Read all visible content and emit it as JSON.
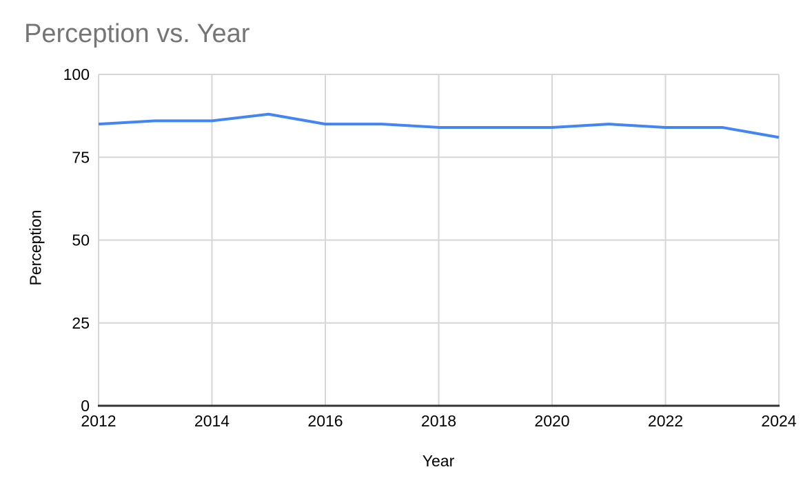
{
  "chart_data": {
    "type": "line",
    "title": "Perception vs. Year",
    "xlabel": "Year",
    "ylabel": "Perception",
    "x": [
      2012,
      2013,
      2014,
      2015,
      2016,
      2017,
      2018,
      2019,
      2020,
      2021,
      2022,
      2023,
      2024
    ],
    "series": [
      {
        "name": "Perception",
        "values": [
          85,
          86,
          86,
          88,
          85,
          85,
          84,
          84,
          84,
          85,
          84,
          84,
          81
        ]
      }
    ],
    "xlim": [
      2012,
      2024
    ],
    "ylim": [
      0,
      100
    ],
    "xticks": [
      2012,
      2014,
      2016,
      2018,
      2020,
      2022,
      2024
    ],
    "yticks": [
      0,
      25,
      50,
      75,
      100
    ],
    "grid": true,
    "legend_position": "none",
    "colors": {
      "line": "#4285f4",
      "grid": "#d6d6d6",
      "axis": "#333333",
      "tick_label": "#000000",
      "title": "#757575"
    }
  }
}
